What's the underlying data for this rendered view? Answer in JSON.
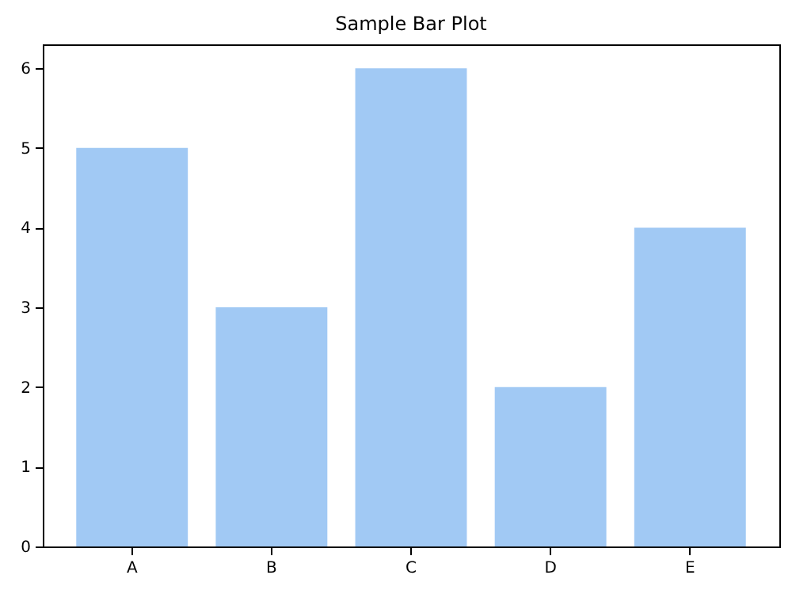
{
  "chart_data": {
    "type": "bar",
    "title": "Sample Bar Plot",
    "categories": [
      "A",
      "B",
      "C",
      "D",
      "E"
    ],
    "values": [
      5,
      3,
      6,
      2,
      4
    ],
    "color": "#a1c9f4",
    "ylim": [
      0,
      6.3
    ],
    "yticks": [
      0,
      1,
      2,
      3,
      4,
      5,
      6
    ],
    "grid": false
  }
}
